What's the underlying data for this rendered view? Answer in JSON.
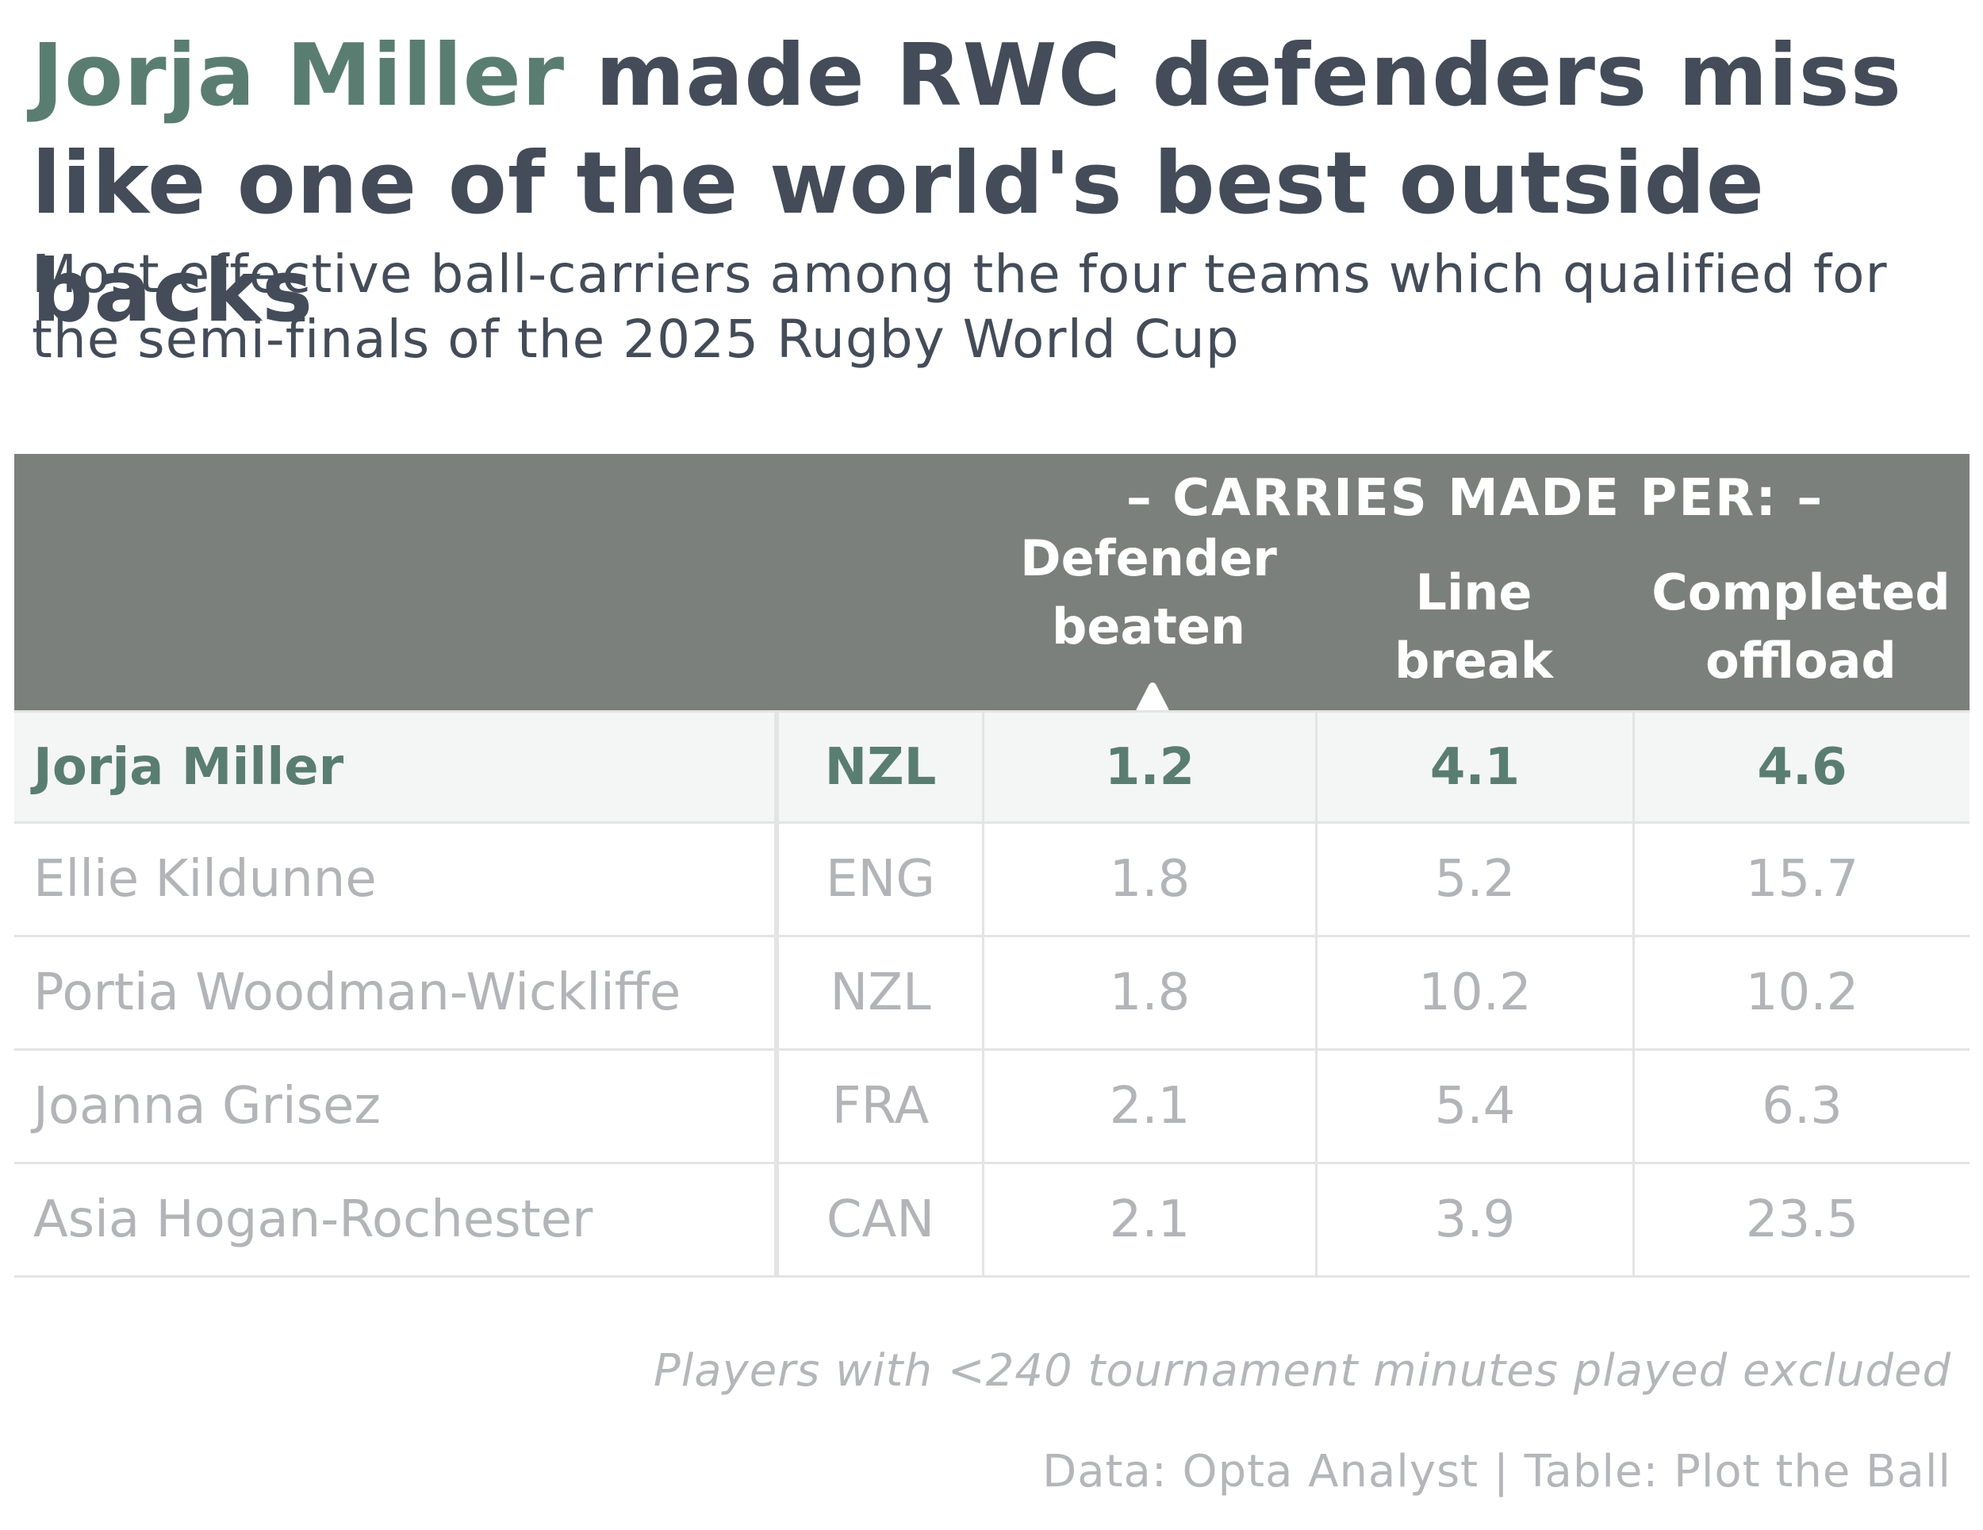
{
  "title": {
    "highlight": "Jorja Miller",
    "rest": " made RWC defenders miss like one of the world's best outside backs"
  },
  "subtitle": "Most effective ball-carriers among the four teams which qualified for the semi-finals of the 2025 Rugby World Cup",
  "chart_data": {
    "type": "table",
    "spanner": "– CARRIES MADE PER: –",
    "columns": [
      {
        "line1": "Defender",
        "line2": "beaten",
        "sort_icon": "triangle-up-icon"
      },
      {
        "line1": "Line",
        "line2": "break"
      },
      {
        "line1": "Completed",
        "line2": "offload"
      }
    ],
    "rows": [
      {
        "player": "Jorja Miller",
        "team": "NZL",
        "defender_beaten": "1.2",
        "line_break": "4.1",
        "completed_offload": "4.6",
        "highlight": true
      },
      {
        "player": "Ellie Kildunne",
        "team": "ENG",
        "defender_beaten": "1.8",
        "line_break": "5.2",
        "completed_offload": "15.7",
        "highlight": false
      },
      {
        "player": "Portia Woodman-Wickliffe",
        "team": "NZL",
        "defender_beaten": "1.8",
        "line_break": "10.2",
        "completed_offload": "10.2",
        "highlight": false
      },
      {
        "player": "Joanna Grisez",
        "team": "FRA",
        "defender_beaten": "2.1",
        "line_break": "5.4",
        "completed_offload": "6.3",
        "highlight": false
      },
      {
        "player": "Asia Hogan-Rochester",
        "team": "CAN",
        "defender_beaten": "2.1",
        "line_break": "3.9",
        "completed_offload": "23.5",
        "highlight": false
      }
    ]
  },
  "footnote": "Players with <240 tournament minutes played excluded",
  "source": "Data: Opta Analyst | Table: Plot the Ball",
  "colors": {
    "highlight": "#5a7d72",
    "title": "#434c58",
    "header_bg": "#7b807d",
    "muted": "#b2b4b8"
  }
}
